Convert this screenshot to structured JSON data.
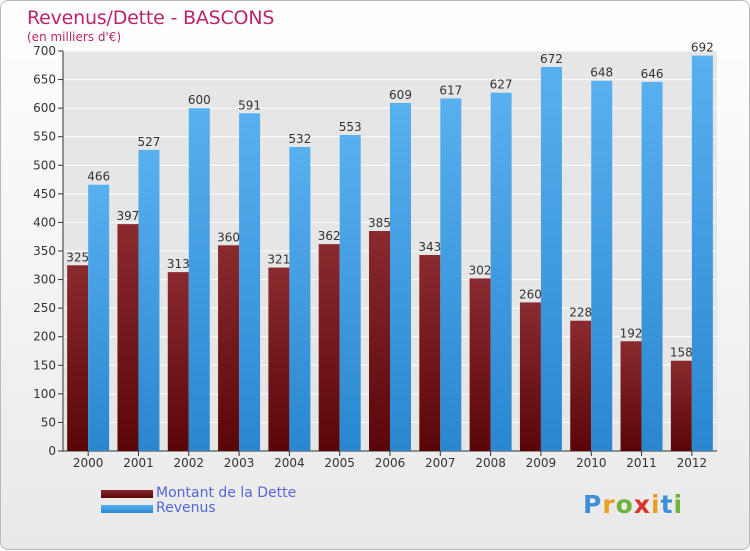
{
  "header": {
    "title": "Revenus/Dette - BASCONS",
    "subtitle": "(en milliers d'€)"
  },
  "colors": {
    "dette": "#6b0f12",
    "revenus": "#3b97e0",
    "title": "#b8256a",
    "legend_text": "#5567d4"
  },
  "chart_data": {
    "type": "bar",
    "title": "Revenus/Dette - BASCONS",
    "ylabel": "(en milliers d'€)",
    "xlabel": "",
    "categories": [
      "2000",
      "2001",
      "2002",
      "2003",
      "2004",
      "2005",
      "2006",
      "2007",
      "2008",
      "2009",
      "2010",
      "2011",
      "2012"
    ],
    "series": [
      {
        "name": "Montant de la Dette",
        "values": [
          325,
          397,
          313,
          360,
          321,
          362,
          385,
          343,
          302,
          260,
          228,
          192,
          158
        ]
      },
      {
        "name": "Revenus",
        "values": [
          466,
          527,
          600,
          591,
          532,
          553,
          609,
          617,
          627,
          672,
          648,
          646,
          692
        ]
      }
    ],
    "ylim": [
      0,
      700
    ],
    "yticks": [
      0,
      50,
      100,
      150,
      200,
      250,
      300,
      350,
      400,
      450,
      500,
      550,
      600,
      650,
      700
    ],
    "grid": true,
    "legend_position": "bottom-left"
  },
  "legend": {
    "items": [
      "Montant de la Dette",
      "Revenus"
    ]
  },
  "logo": {
    "text": "Proxiti"
  }
}
